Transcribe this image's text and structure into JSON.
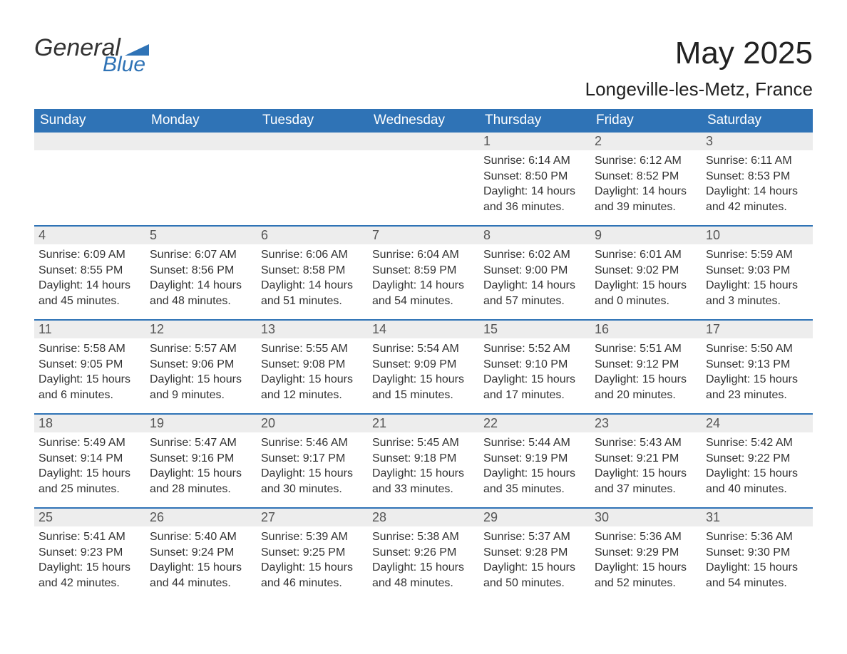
{
  "logo": {
    "text1": "General",
    "text2": "Blue",
    "accent_color": "#2f73b6"
  },
  "title": "May 2025",
  "location": "Longeville-les-Metz, France",
  "colors": {
    "header_bg": "#2f73b6",
    "header_text": "#ffffff",
    "date_bg": "#ededed",
    "date_text": "#555555",
    "body_text": "#333333",
    "divider": "#2f73b6",
    "page_bg": "#ffffff"
  },
  "typography": {
    "title_fontsize": 44,
    "location_fontsize": 26,
    "dayheader_fontsize": 19,
    "date_fontsize": 18,
    "body_fontsize": 16
  },
  "day_names": [
    "Sunday",
    "Monday",
    "Tuesday",
    "Wednesday",
    "Thursday",
    "Friday",
    "Saturday"
  ],
  "weeks": [
    [
      {
        "date": "",
        "sunrise": "",
        "sunset": "",
        "daylight": ""
      },
      {
        "date": "",
        "sunrise": "",
        "sunset": "",
        "daylight": ""
      },
      {
        "date": "",
        "sunrise": "",
        "sunset": "",
        "daylight": ""
      },
      {
        "date": "",
        "sunrise": "",
        "sunset": "",
        "daylight": ""
      },
      {
        "date": "1",
        "sunrise": "Sunrise: 6:14 AM",
        "sunset": "Sunset: 8:50 PM",
        "daylight": "Daylight: 14 hours and 36 minutes."
      },
      {
        "date": "2",
        "sunrise": "Sunrise: 6:12 AM",
        "sunset": "Sunset: 8:52 PM",
        "daylight": "Daylight: 14 hours and 39 minutes."
      },
      {
        "date": "3",
        "sunrise": "Sunrise: 6:11 AM",
        "sunset": "Sunset: 8:53 PM",
        "daylight": "Daylight: 14 hours and 42 minutes."
      }
    ],
    [
      {
        "date": "4",
        "sunrise": "Sunrise: 6:09 AM",
        "sunset": "Sunset: 8:55 PM",
        "daylight": "Daylight: 14 hours and 45 minutes."
      },
      {
        "date": "5",
        "sunrise": "Sunrise: 6:07 AM",
        "sunset": "Sunset: 8:56 PM",
        "daylight": "Daylight: 14 hours and 48 minutes."
      },
      {
        "date": "6",
        "sunrise": "Sunrise: 6:06 AM",
        "sunset": "Sunset: 8:58 PM",
        "daylight": "Daylight: 14 hours and 51 minutes."
      },
      {
        "date": "7",
        "sunrise": "Sunrise: 6:04 AM",
        "sunset": "Sunset: 8:59 PM",
        "daylight": "Daylight: 14 hours and 54 minutes."
      },
      {
        "date": "8",
        "sunrise": "Sunrise: 6:02 AM",
        "sunset": "Sunset: 9:00 PM",
        "daylight": "Daylight: 14 hours and 57 minutes."
      },
      {
        "date": "9",
        "sunrise": "Sunrise: 6:01 AM",
        "sunset": "Sunset: 9:02 PM",
        "daylight": "Daylight: 15 hours and 0 minutes."
      },
      {
        "date": "10",
        "sunrise": "Sunrise: 5:59 AM",
        "sunset": "Sunset: 9:03 PM",
        "daylight": "Daylight: 15 hours and 3 minutes."
      }
    ],
    [
      {
        "date": "11",
        "sunrise": "Sunrise: 5:58 AM",
        "sunset": "Sunset: 9:05 PM",
        "daylight": "Daylight: 15 hours and 6 minutes."
      },
      {
        "date": "12",
        "sunrise": "Sunrise: 5:57 AM",
        "sunset": "Sunset: 9:06 PM",
        "daylight": "Daylight: 15 hours and 9 minutes."
      },
      {
        "date": "13",
        "sunrise": "Sunrise: 5:55 AM",
        "sunset": "Sunset: 9:08 PM",
        "daylight": "Daylight: 15 hours and 12 minutes."
      },
      {
        "date": "14",
        "sunrise": "Sunrise: 5:54 AM",
        "sunset": "Sunset: 9:09 PM",
        "daylight": "Daylight: 15 hours and 15 minutes."
      },
      {
        "date": "15",
        "sunrise": "Sunrise: 5:52 AM",
        "sunset": "Sunset: 9:10 PM",
        "daylight": "Daylight: 15 hours and 17 minutes."
      },
      {
        "date": "16",
        "sunrise": "Sunrise: 5:51 AM",
        "sunset": "Sunset: 9:12 PM",
        "daylight": "Daylight: 15 hours and 20 minutes."
      },
      {
        "date": "17",
        "sunrise": "Sunrise: 5:50 AM",
        "sunset": "Sunset: 9:13 PM",
        "daylight": "Daylight: 15 hours and 23 minutes."
      }
    ],
    [
      {
        "date": "18",
        "sunrise": "Sunrise: 5:49 AM",
        "sunset": "Sunset: 9:14 PM",
        "daylight": "Daylight: 15 hours and 25 minutes."
      },
      {
        "date": "19",
        "sunrise": "Sunrise: 5:47 AM",
        "sunset": "Sunset: 9:16 PM",
        "daylight": "Daylight: 15 hours and 28 minutes."
      },
      {
        "date": "20",
        "sunrise": "Sunrise: 5:46 AM",
        "sunset": "Sunset: 9:17 PM",
        "daylight": "Daylight: 15 hours and 30 minutes."
      },
      {
        "date": "21",
        "sunrise": "Sunrise: 5:45 AM",
        "sunset": "Sunset: 9:18 PM",
        "daylight": "Daylight: 15 hours and 33 minutes."
      },
      {
        "date": "22",
        "sunrise": "Sunrise: 5:44 AM",
        "sunset": "Sunset: 9:19 PM",
        "daylight": "Daylight: 15 hours and 35 minutes."
      },
      {
        "date": "23",
        "sunrise": "Sunrise: 5:43 AM",
        "sunset": "Sunset: 9:21 PM",
        "daylight": "Daylight: 15 hours and 37 minutes."
      },
      {
        "date": "24",
        "sunrise": "Sunrise: 5:42 AM",
        "sunset": "Sunset: 9:22 PM",
        "daylight": "Daylight: 15 hours and 40 minutes."
      }
    ],
    [
      {
        "date": "25",
        "sunrise": "Sunrise: 5:41 AM",
        "sunset": "Sunset: 9:23 PM",
        "daylight": "Daylight: 15 hours and 42 minutes."
      },
      {
        "date": "26",
        "sunrise": "Sunrise: 5:40 AM",
        "sunset": "Sunset: 9:24 PM",
        "daylight": "Daylight: 15 hours and 44 minutes."
      },
      {
        "date": "27",
        "sunrise": "Sunrise: 5:39 AM",
        "sunset": "Sunset: 9:25 PM",
        "daylight": "Daylight: 15 hours and 46 minutes."
      },
      {
        "date": "28",
        "sunrise": "Sunrise: 5:38 AM",
        "sunset": "Sunset: 9:26 PM",
        "daylight": "Daylight: 15 hours and 48 minutes."
      },
      {
        "date": "29",
        "sunrise": "Sunrise: 5:37 AM",
        "sunset": "Sunset: 9:28 PM",
        "daylight": "Daylight: 15 hours and 50 minutes."
      },
      {
        "date": "30",
        "sunrise": "Sunrise: 5:36 AM",
        "sunset": "Sunset: 9:29 PM",
        "daylight": "Daylight: 15 hours and 52 minutes."
      },
      {
        "date": "31",
        "sunrise": "Sunrise: 5:36 AM",
        "sunset": "Sunset: 9:30 PM",
        "daylight": "Daylight: 15 hours and 54 minutes."
      }
    ]
  ]
}
